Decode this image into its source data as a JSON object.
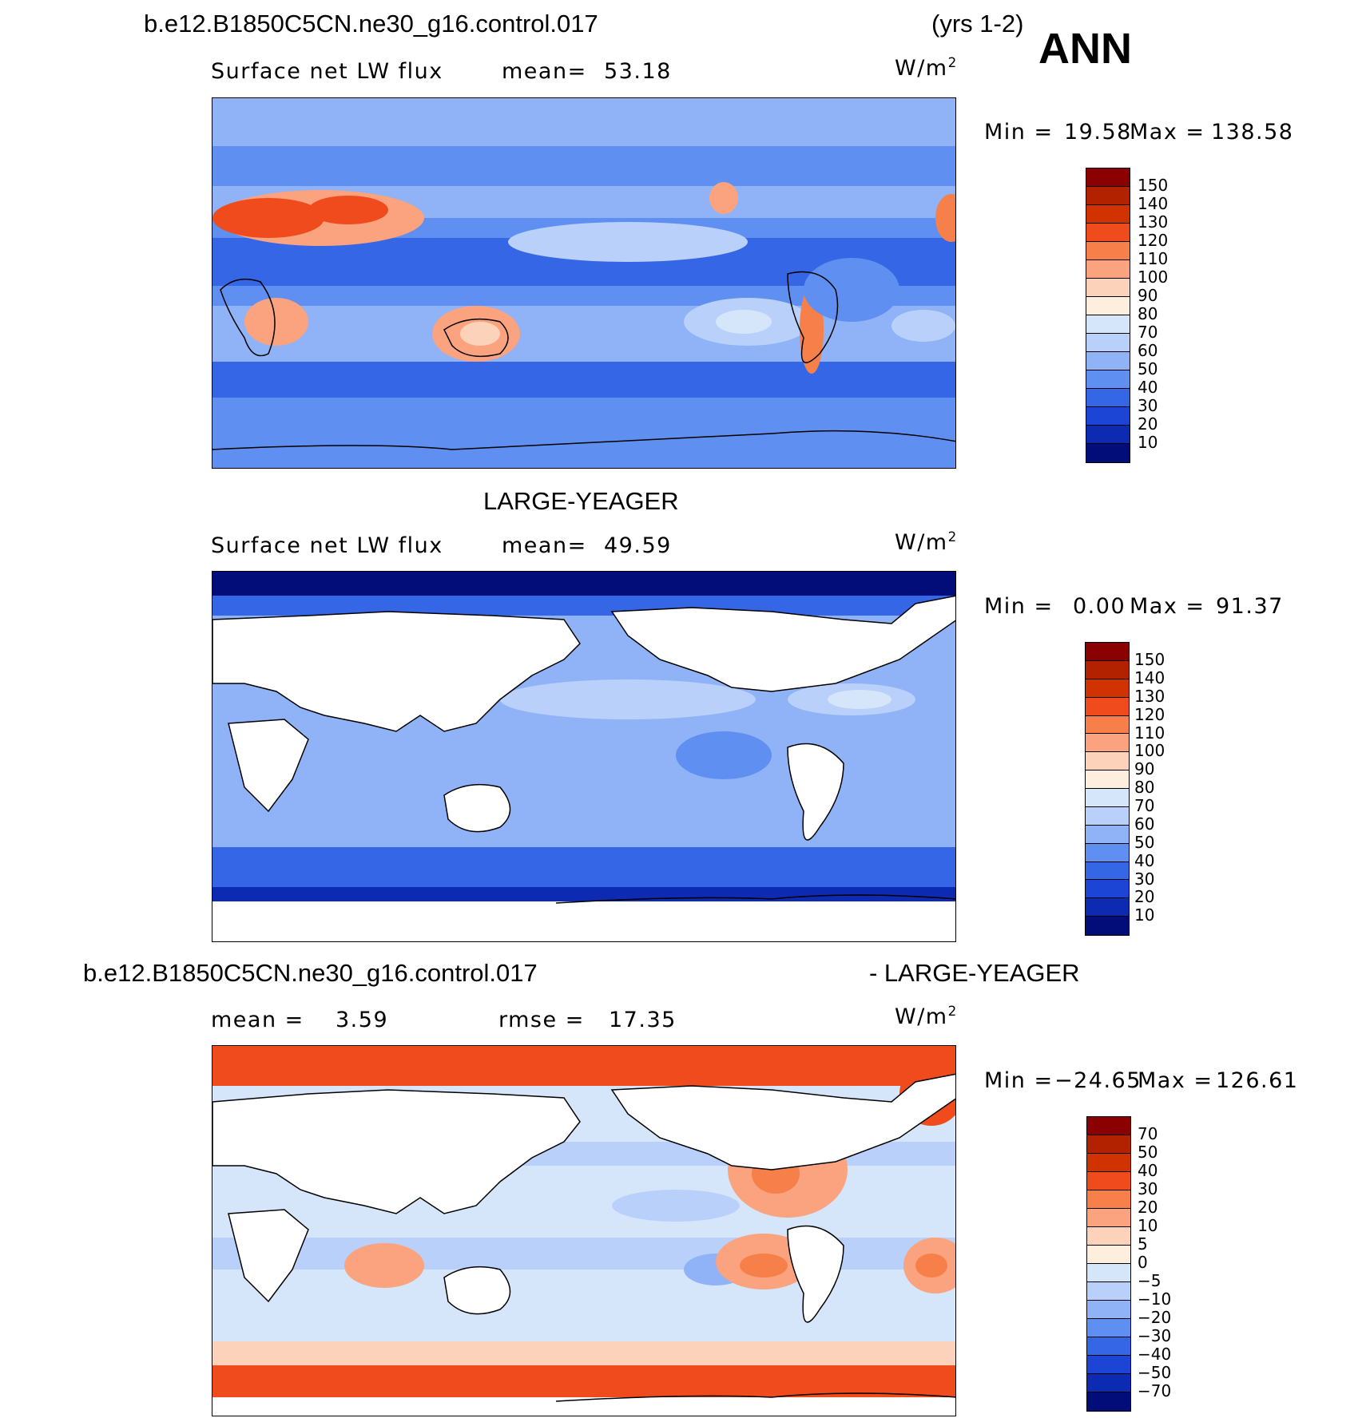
{
  "header": {
    "case_name": "b.e12.B1850C5CN.ne30_g16.control.017",
    "years": "(yrs 1-2)",
    "season": "ANN"
  },
  "panels": [
    {
      "id": "model",
      "variable": "Surface net LW flux",
      "stat_label": "mean=",
      "stat_value": "53.18",
      "units": "W/m",
      "units_sup": "2",
      "min_label": "Min =",
      "min_value": "19.58",
      "max_label": "Max =",
      "max_value": "138.58",
      "colorbar_levels": [
        "150",
        "140",
        "130",
        "120",
        "110",
        "100",
        "90",
        "80",
        "70",
        "60",
        "50",
        "40",
        "30",
        "20",
        "10"
      ],
      "colorbar_colors": [
        "#8b0000",
        "#b22200",
        "#d03300",
        "#f04b1c",
        "#f77f4a",
        "#fba27f",
        "#fdd2ba",
        "#fdeedd",
        "#d5e6fb",
        "#b9d1fa",
        "#8fb3f6",
        "#5f8ff0",
        "#3566e6",
        "#1c45d6",
        "#0d2ab3",
        "#030d7a"
      ]
    },
    {
      "id": "obs",
      "title": "LARGE-YEAGER",
      "variable": "Surface net LW flux",
      "stat_label": "mean=",
      "stat_value": "49.59",
      "units": "W/m",
      "units_sup": "2",
      "min_label": "Min =",
      "min_value": "0.00",
      "max_label": "Max =",
      "max_value": "91.37",
      "colorbar_levels": [
        "150",
        "140",
        "130",
        "120",
        "110",
        "100",
        "90",
        "80",
        "70",
        "60",
        "50",
        "40",
        "30",
        "20",
        "10"
      ],
      "colorbar_colors": [
        "#8b0000",
        "#b22200",
        "#d03300",
        "#f04b1c",
        "#f77f4a",
        "#fba27f",
        "#fdd2ba",
        "#fdeedd",
        "#d5e6fb",
        "#b9d1fa",
        "#8fb3f6",
        "#5f8ff0",
        "#3566e6",
        "#1c45d6",
        "#0d2ab3",
        "#030d7a"
      ]
    },
    {
      "id": "diff",
      "title_left": "b.e12.B1850C5CN.ne30_g16.control.017",
      "title_right": "- LARGE-YEAGER",
      "stat_label": "mean =",
      "stat_value": "3.59",
      "stat2_label": "rmse =",
      "stat2_value": "17.35",
      "units": "W/m",
      "units_sup": "2",
      "min_label": "Min =",
      "min_value": "−24.65",
      "max_label": "Max =",
      "max_value": "126.61",
      "colorbar_levels": [
        "70",
        "50",
        "40",
        "30",
        "20",
        "10",
        "5",
        "0",
        "−5",
        "−10",
        "−20",
        "−30",
        "−40",
        "−50",
        "−70"
      ],
      "colorbar_colors": [
        "#8b0000",
        "#b22200",
        "#d03300",
        "#f04b1c",
        "#f77f4a",
        "#fba27f",
        "#fdd2ba",
        "#fdeedd",
        "#d5e6fb",
        "#b9d1fa",
        "#8fb3f6",
        "#5f8ff0",
        "#3566e6",
        "#1c45d6",
        "#0d2ab3",
        "#030d7a"
      ]
    }
  ]
}
